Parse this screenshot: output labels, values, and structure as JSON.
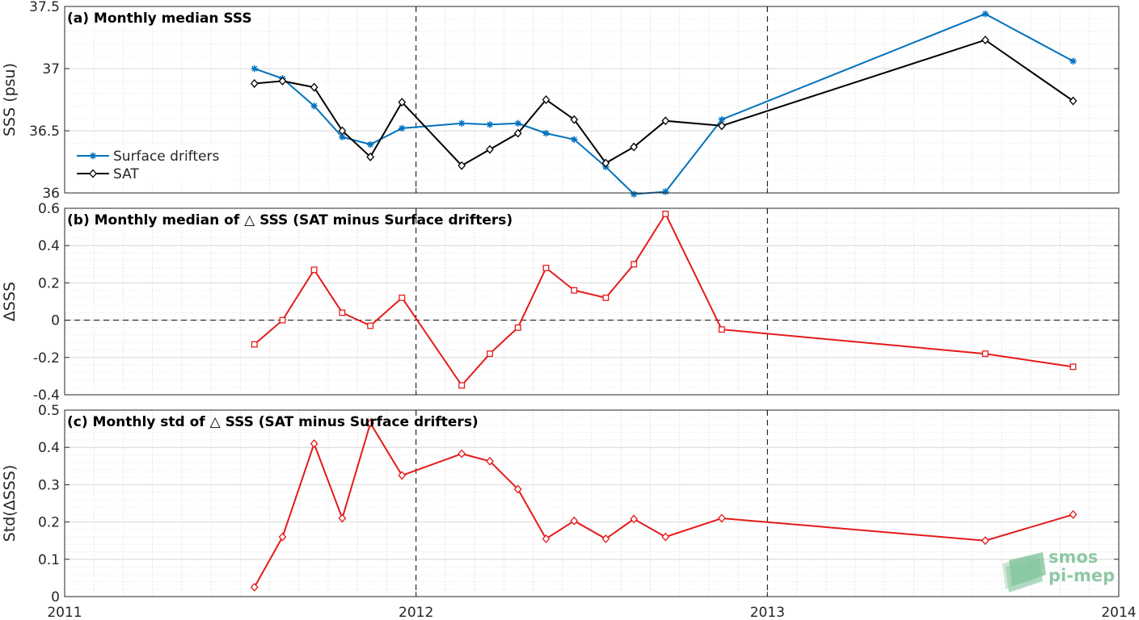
{
  "colors": {
    "drifters": "#0072BD",
    "sat": "#000000",
    "delta": "#E51A1A",
    "grid": "#d0d0d0",
    "axis": "#262626"
  },
  "x_axis": {
    "ticks": [
      "2011",
      "2012",
      "2013",
      "2014"
    ],
    "xlim": [
      2011,
      2014
    ]
  },
  "logo": {
    "line1": "smos",
    "line2": "pi-mep"
  },
  "chart_data": [
    {
      "type": "line",
      "title": "(a) Monthly median SSS",
      "ylabel": "SSS (psu)",
      "ylim": [
        36,
        37.5
      ],
      "yticks": [
        "36",
        "36.5",
        "37",
        "37.5"
      ],
      "grid": true,
      "legend_position": "bottom-left",
      "series": [
        {
          "name": "Surface drifters",
          "marker": "star",
          "x": [
            2011.54,
            2011.62,
            2011.71,
            2011.79,
            2011.87,
            2011.96,
            2012.13,
            2012.21,
            2012.29,
            2012.37,
            2012.45,
            2012.54,
            2012.62,
            2012.71,
            2012.87,
            2013.62,
            2013.87
          ],
          "y": [
            37.0,
            36.92,
            36.7,
            36.45,
            36.39,
            36.52,
            36.56,
            36.55,
            36.56,
            36.48,
            36.43,
            36.21,
            35.99,
            36.01,
            36.59,
            37.44,
            37.06
          ]
        },
        {
          "name": "SAT",
          "marker": "diamond",
          "x": [
            2011.54,
            2011.62,
            2011.71,
            2011.79,
            2011.87,
            2011.96,
            2012.13,
            2012.21,
            2012.29,
            2012.37,
            2012.45,
            2012.54,
            2012.62,
            2012.71,
            2012.87,
            2013.62,
            2013.87
          ],
          "y": [
            36.88,
            36.9,
            36.85,
            36.5,
            36.29,
            36.73,
            36.22,
            36.35,
            36.48,
            36.75,
            36.59,
            36.24,
            36.37,
            36.58,
            36.54,
            37.23,
            36.74
          ]
        }
      ]
    },
    {
      "type": "line",
      "title": "(b) Monthly median of △ SSS (SAT minus Surface drifters)",
      "ylabel": "ΔSSS",
      "ylim": [
        -0.4,
        0.6
      ],
      "yticks": [
        "-0.4",
        "-0.2",
        "0",
        "0.2",
        "0.4",
        "0.6"
      ],
      "grid": true,
      "series": [
        {
          "marker": "square",
          "x": [
            2011.54,
            2011.62,
            2011.71,
            2011.79,
            2011.87,
            2011.96,
            2012.13,
            2012.21,
            2012.29,
            2012.37,
            2012.45,
            2012.54,
            2012.62,
            2012.71,
            2012.87,
            2013.62,
            2013.87
          ],
          "y": [
            -0.13,
            0.0,
            0.27,
            0.04,
            -0.03,
            0.12,
            -0.35,
            -0.18,
            -0.04,
            0.28,
            0.16,
            0.12,
            0.3,
            0.57,
            -0.05,
            -0.18,
            -0.25
          ]
        }
      ]
    },
    {
      "type": "line",
      "title": "(c) Monthly std of △ SSS (SAT minus Surface drifters)",
      "ylabel": "Std(ΔSSS)",
      "ylim": [
        0,
        0.5
      ],
      "yticks": [
        "0",
        "0.1",
        "0.2",
        "0.3",
        "0.4",
        "0.5"
      ],
      "grid": true,
      "series": [
        {
          "marker": "diamond",
          "x": [
            2011.54,
            2011.62,
            2011.71,
            2011.79,
            2011.87,
            2011.96,
            2012.13,
            2012.21,
            2012.29,
            2012.37,
            2012.45,
            2012.54,
            2012.62,
            2012.71,
            2012.87,
            2013.62,
            2013.87
          ],
          "y": [
            0.025,
            0.16,
            0.41,
            0.21,
            0.465,
            0.325,
            0.383,
            0.363,
            0.288,
            0.155,
            0.203,
            0.155,
            0.208,
            0.16,
            0.21,
            0.15,
            0.22
          ]
        }
      ]
    }
  ]
}
